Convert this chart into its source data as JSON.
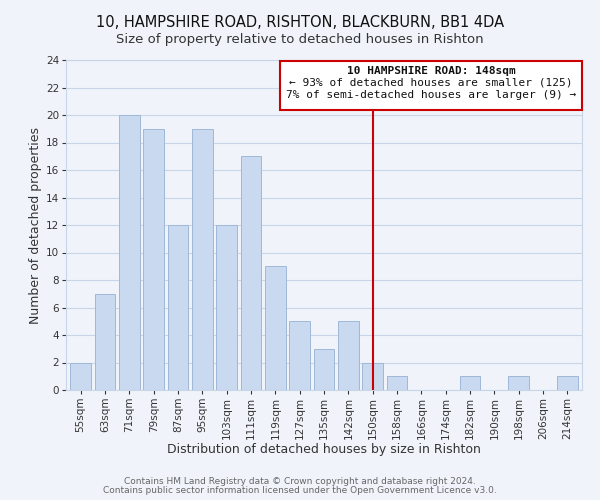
{
  "title": "10, HAMPSHIRE ROAD, RISHTON, BLACKBURN, BB1 4DA",
  "subtitle": "Size of property relative to detached houses in Rishton",
  "xlabel": "Distribution of detached houses by size in Rishton",
  "ylabel": "Number of detached properties",
  "bar_labels": [
    "55sqm",
    "63sqm",
    "71sqm",
    "79sqm",
    "87sqm",
    "95sqm",
    "103sqm",
    "111sqm",
    "119sqm",
    "127sqm",
    "135sqm",
    "142sqm",
    "150sqm",
    "158sqm",
    "166sqm",
    "174sqm",
    "182sqm",
    "190sqm",
    "198sqm",
    "206sqm",
    "214sqm"
  ],
  "bar_values": [
    2,
    7,
    20,
    19,
    12,
    19,
    12,
    17,
    9,
    5,
    3,
    5,
    2,
    1,
    0,
    0,
    1,
    0,
    1,
    0,
    1
  ],
  "bar_color": "#c9d9f0",
  "bar_edge_color": "#a0b8d8",
  "marker_index": 12,
  "marker_color": "#cc0000",
  "ylim": [
    0,
    24
  ],
  "yticks": [
    0,
    2,
    4,
    6,
    8,
    10,
    12,
    14,
    16,
    18,
    20,
    22,
    24
  ],
  "annotation_title": "10 HAMPSHIRE ROAD: 148sqm",
  "annotation_line1": "← 93% of detached houses are smaller (125)",
  "annotation_line2": "7% of semi-detached houses are larger (9) →",
  "footer1": "Contains HM Land Registry data © Crown copyright and database right 2024.",
  "footer2": "Contains public sector information licensed under the Open Government Licence v3.0.",
  "bg_color": "#f0f4fa",
  "grid_color": "#c8d4e8",
  "title_fontsize": 10.5,
  "subtitle_fontsize": 9.5,
  "axis_label_fontsize": 9,
  "tick_fontsize": 7.5,
  "footer_fontsize": 6.5,
  "annot_fontsize": 8
}
